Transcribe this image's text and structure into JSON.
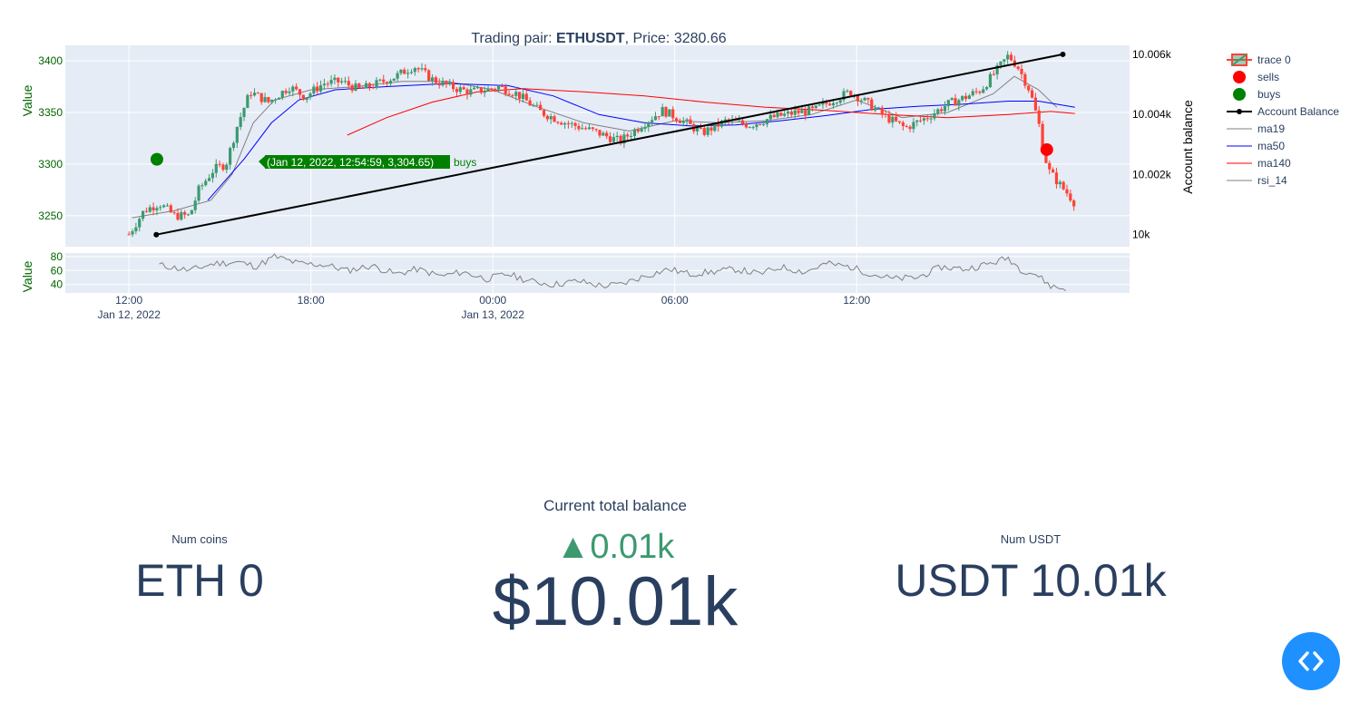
{
  "chart_title": {
    "prefix": "Trading pair: ",
    "pair": "ETHUSDT",
    "middle": ", Price: ",
    "price": "3280.66"
  },
  "tooltip": {
    "text": "(Jan 12, 2022, 12:54:59, 3,304.65)",
    "series": "buys",
    "color": "#008000"
  },
  "legend": {
    "items": [
      {
        "label": "trace 0",
        "kind": "candle"
      },
      {
        "label": "sells",
        "kind": "marker",
        "color": "#ff0000"
      },
      {
        "label": "buys",
        "kind": "marker",
        "color": "#008000"
      },
      {
        "label": "Account Balance",
        "kind": "line-marker",
        "color": "#000000"
      },
      {
        "label": "ma19",
        "kind": "line",
        "color": "#808080"
      },
      {
        "label": "ma50",
        "kind": "line",
        "color": "#0000ff"
      },
      {
        "label": "ma140",
        "kind": "line",
        "color": "#ff0000"
      },
      {
        "label": "rsi_14",
        "kind": "line",
        "color": "#808080"
      }
    ]
  },
  "chart_data": {
    "type": "candlestick",
    "title": "Trading pair: ETHUSDT, Price: 3280.66",
    "x_ticks": [
      {
        "label": "12:00",
        "sub": "Jan 12, 2022",
        "hour": 12
      },
      {
        "label": "18:00",
        "sub": "",
        "hour": 18
      },
      {
        "label": "00:00",
        "sub": "Jan 13, 2022",
        "hour": 24
      },
      {
        "label": "06:00",
        "sub": "",
        "hour": 30
      },
      {
        "label": "12:00",
        "sub": "",
        "hour": 36
      }
    ],
    "x_range_hours": [
      9.9,
      45.0
    ],
    "price_axis": {
      "label": "Value",
      "ticks": [
        3250,
        3300,
        3350,
        3400
      ],
      "range": [
        3220,
        3415
      ]
    },
    "balance_axis": {
      "label": "Account balance",
      "ticks": [
        "10k",
        "10.002k",
        "10.004k",
        "10.006k"
      ],
      "tick_values": [
        10000,
        10002,
        10004,
        10006
      ],
      "range": [
        9999.6,
        10006.3
      ]
    },
    "rsi_axis": {
      "label": "Value",
      "ticks": [
        40,
        60,
        80
      ],
      "range": [
        28,
        85
      ]
    },
    "price_waypoints": [
      [
        12.0,
        3232
      ],
      [
        12.5,
        3255
      ],
      [
        13.0,
        3262
      ],
      [
        13.5,
        3250
      ],
      [
        14.0,
        3250
      ],
      [
        14.3,
        3275
      ],
      [
        14.8,
        3295
      ],
      [
        15.2,
        3300
      ],
      [
        15.6,
        3340
      ],
      [
        16.0,
        3370
      ],
      [
        16.6,
        3360
      ],
      [
        17.3,
        3375
      ],
      [
        17.8,
        3365
      ],
      [
        18.4,
        3378
      ],
      [
        19.0,
        3380
      ],
      [
        19.6,
        3372
      ],
      [
        20.2,
        3378
      ],
      [
        20.8,
        3385
      ],
      [
        21.4,
        3395
      ],
      [
        22.0,
        3382
      ],
      [
        22.6,
        3375
      ],
      [
        23.2,
        3370
      ],
      [
        23.8,
        3372
      ],
      [
        24.2,
        3375
      ],
      [
        24.8,
        3368
      ],
      [
        25.6,
        3350
      ],
      [
        26.4,
        3340
      ],
      [
        27.3,
        3332
      ],
      [
        28.2,
        3322
      ],
      [
        29.0,
        3340
      ],
      [
        29.6,
        3352
      ],
      [
        30.2,
        3343
      ],
      [
        30.9,
        3330
      ],
      [
        31.7,
        3342
      ],
      [
        32.5,
        3338
      ],
      [
        33.2,
        3345
      ],
      [
        34.0,
        3350
      ],
      [
        34.6,
        3352
      ],
      [
        35.2,
        3362
      ],
      [
        35.8,
        3370
      ],
      [
        36.4,
        3358
      ],
      [
        37.0,
        3345
      ],
      [
        37.6,
        3335
      ],
      [
        38.3,
        3345
      ],
      [
        39.0,
        3358
      ],
      [
        39.6,
        3365
      ],
      [
        40.1,
        3372
      ],
      [
        40.6,
        3390
      ],
      [
        41.0,
        3405
      ],
      [
        41.3,
        3395
      ],
      [
        41.7,
        3372
      ],
      [
        42.0,
        3340
      ],
      [
        42.3,
        3295
      ],
      [
        42.7,
        3280
      ],
      [
        43.0,
        3270
      ],
      [
        43.2,
        3262
      ]
    ],
    "series": [
      {
        "name": "ma19",
        "color": "#808080",
        "points": [
          [
            12.1,
            3248
          ],
          [
            13.5,
            3255
          ],
          [
            14.7,
            3265
          ],
          [
            15.4,
            3290
          ],
          [
            16.1,
            3340
          ],
          [
            16.8,
            3362
          ],
          [
            18.0,
            3372
          ],
          [
            19.5,
            3375
          ],
          [
            21.0,
            3380
          ],
          [
            22.5,
            3380
          ],
          [
            24.0,
            3372
          ],
          [
            25.5,
            3355
          ],
          [
            27.0,
            3340
          ],
          [
            28.5,
            3332
          ],
          [
            30.0,
            3342
          ],
          [
            31.5,
            3340
          ],
          [
            33.0,
            3342
          ],
          [
            34.5,
            3348
          ],
          [
            36.0,
            3362
          ],
          [
            37.5,
            3345
          ],
          [
            39.0,
            3350
          ],
          [
            40.5,
            3368
          ],
          [
            41.2,
            3385
          ],
          [
            42.0,
            3372
          ],
          [
            42.6,
            3355
          ]
        ]
      },
      {
        "name": "ma50",
        "color": "#0000ff",
        "points": [
          [
            14.6,
            3265
          ],
          [
            15.8,
            3305
          ],
          [
            16.7,
            3340
          ],
          [
            17.6,
            3362
          ],
          [
            18.8,
            3372
          ],
          [
            20.5,
            3375
          ],
          [
            22.5,
            3378
          ],
          [
            24.5,
            3376
          ],
          [
            26.0,
            3366
          ],
          [
            27.5,
            3348
          ],
          [
            29.0,
            3340
          ],
          [
            30.5,
            3337
          ],
          [
            32.0,
            3338
          ],
          [
            33.5,
            3342
          ],
          [
            35.0,
            3347
          ],
          [
            36.5,
            3353
          ],
          [
            38.0,
            3356
          ],
          [
            39.5,
            3358
          ],
          [
            41.0,
            3361
          ],
          [
            42.0,
            3361
          ],
          [
            42.8,
            3357
          ],
          [
            43.2,
            3355
          ]
        ]
      },
      {
        "name": "ma140",
        "color": "#ff0000",
        "points": [
          [
            19.2,
            3328
          ],
          [
            20.5,
            3345
          ],
          [
            22.0,
            3360
          ],
          [
            23.5,
            3370
          ],
          [
            25.0,
            3373
          ],
          [
            27.0,
            3370
          ],
          [
            29.0,
            3366
          ],
          [
            31.0,
            3360
          ],
          [
            33.0,
            3355
          ],
          [
            35.0,
            3352
          ],
          [
            37.0,
            3348
          ],
          [
            39.0,
            3345
          ],
          [
            41.0,
            3348
          ],
          [
            42.4,
            3351
          ],
          [
            43.2,
            3349
          ]
        ]
      },
      {
        "name": "Account Balance",
        "color": "#000000",
        "points": [
          [
            12.9,
            10000
          ],
          [
            42.8,
            10006
          ]
        ]
      }
    ],
    "markers": [
      {
        "name": "buys",
        "color": "#008000",
        "hour": 12.92,
        "price": 3304.65
      },
      {
        "name": "sells",
        "color": "#ff0000",
        "hour": 42.27,
        "price": 3314
      }
    ],
    "rsi_waypoints": [
      [
        13.0,
        68
      ],
      [
        14.0,
        60
      ],
      [
        14.8,
        70
      ],
      [
        15.6,
        72
      ],
      [
        16.2,
        66
      ],
      [
        16.8,
        80
      ],
      [
        17.6,
        70
      ],
      [
        18.5,
        68
      ],
      [
        19.2,
        60
      ],
      [
        20.0,
        67
      ],
      [
        20.8,
        55
      ],
      [
        21.5,
        62
      ],
      [
        22.3,
        52
      ],
      [
        23.0,
        58
      ],
      [
        23.8,
        48
      ],
      [
        24.5,
        55
      ],
      [
        25.2,
        45
      ],
      [
        26.0,
        40
      ],
      [
        26.8,
        45
      ],
      [
        27.6,
        38
      ],
      [
        28.2,
        40
      ],
      [
        29.0,
        52
      ],
      [
        29.8,
        62
      ],
      [
        30.5,
        55
      ],
      [
        31.2,
        58
      ],
      [
        32.0,
        62
      ],
      [
        32.8,
        55
      ],
      [
        33.5,
        65
      ],
      [
        34.3,
        58
      ],
      [
        35.0,
        70
      ],
      [
        35.8,
        65
      ],
      [
        36.5,
        55
      ],
      [
        37.2,
        48
      ],
      [
        38.0,
        50
      ],
      [
        38.8,
        65
      ],
      [
        39.6,
        62
      ],
      [
        40.4,
        70
      ],
      [
        41.0,
        78
      ],
      [
        41.4,
        62
      ],
      [
        41.9,
        55
      ],
      [
        42.4,
        38
      ],
      [
        43.0,
        32
      ]
    ]
  },
  "kpis": {
    "num_coins": {
      "label": "Num coins",
      "value": "ETH 0"
    },
    "balance": {
      "title": "Current total balance",
      "delta": "▲0.01k",
      "value": "$10.01k"
    },
    "num_usdt": {
      "label": "Num USDT",
      "value": "USDT 10.01k"
    }
  },
  "fab": {
    "icon": "code-icon",
    "color": "#1e90ff"
  }
}
